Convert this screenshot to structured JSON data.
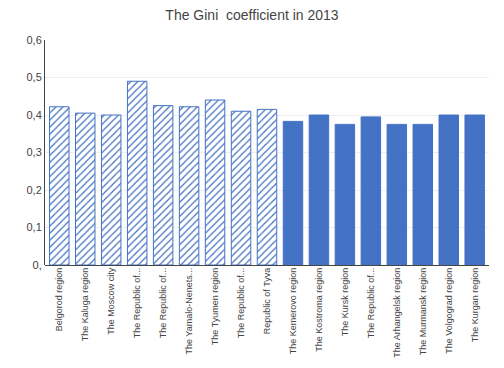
{
  "chart_data": {
    "type": "bar",
    "title": "The Gini  coefficient in 2013",
    "categories": [
      "Belgorod region",
      "The Kaluga region",
      "The Moscow city",
      "The Republic of...",
      "The Republic of...",
      "The Yamalo-Nenets...",
      "The Tyumen region",
      "The Republic of...",
      "Republic of Tyva",
      "The Kemerovo region",
      "The Kostroma region",
      "The Kursk region",
      "The Republic of...",
      "The Arhangelsk region",
      "The Murmansk region",
      "The Volgograd region",
      "The Kurgan region"
    ],
    "series": [
      {
        "color": "#4472C4",
        "marker": "hatch",
        "values": [
          0.422,
          0.405,
          0.4,
          0.49,
          0.425,
          0.422,
          0.44,
          0.41,
          0.415,
          null,
          null,
          null,
          null,
          null,
          null,
          null,
          null
        ]
      },
      {
        "color": "#4472C4",
        "marker": "solid",
        "values": [
          null,
          null,
          null,
          null,
          null,
          null,
          null,
          null,
          null,
          0.383,
          0.4,
          0.375,
          0.395,
          0.375,
          0.375,
          0.4,
          0.4
        ]
      }
    ],
    "ylim": [
      0,
      0.6
    ],
    "yticks": [
      {
        "value": 0.0,
        "label": "0,"
      },
      {
        "value": 0.1,
        "label": "0,1"
      },
      {
        "value": 0.2,
        "label": "0,2"
      },
      {
        "value": 0.3,
        "label": "0,3"
      },
      {
        "value": 0.4,
        "label": "0,4"
      },
      {
        "value": 0.5,
        "label": "0,5"
      },
      {
        "value": 0.6,
        "label": "0,6"
      }
    ],
    "grid": true
  }
}
